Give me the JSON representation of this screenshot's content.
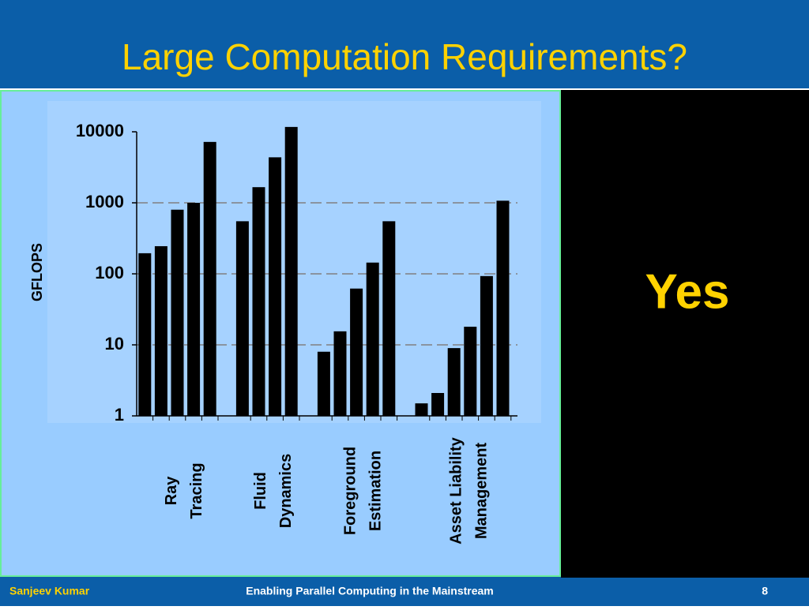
{
  "slide": {
    "title": "Large Computation Requirements?",
    "answer": "Yes",
    "footer": {
      "author": "Sanjeev Kumar",
      "course": "Enabling Parallel Computing in the Mainstream",
      "page": "8"
    }
  },
  "chart_data": {
    "type": "bar",
    "ylabel": "GFLOPS",
    "log": true,
    "color": "#000000",
    "ylim": [
      1,
      10000
    ],
    "yticks": [
      1,
      10,
      100,
      1000,
      10000
    ],
    "grid": true,
    "groups": [
      {
        "label": [
          "Ray",
          "Tracing"
        ],
        "values": [
          195,
          245,
          800,
          1000,
          7200
        ]
      },
      {
        "label": [
          "Fluid",
          "Dynamics"
        ],
        "values": [
          550,
          1660,
          4370,
          11700
        ]
      },
      {
        "label": [
          "Foreground",
          "Estimation"
        ],
        "values": [
          8,
          15.5,
          62,
          144,
          550
        ]
      },
      {
        "label": [
          "Asset Liability",
          "Management"
        ],
        "values": [
          1.5,
          2.1,
          9,
          18,
          93,
          1070
        ]
      }
    ]
  }
}
